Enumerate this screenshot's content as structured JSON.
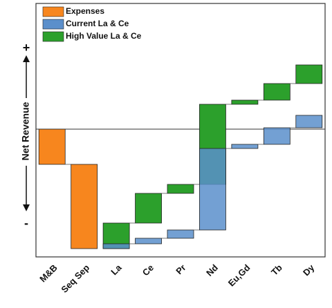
{
  "chart_data": {
    "type": "waterfall",
    "y_axis_label": "Net Revenue",
    "y_axis_top_label": "+",
    "y_axis_bottom_label": "-",
    "categories": [
      "M&B",
      "Seq Sep",
      "La",
      "Ce",
      "Pr",
      "Nd",
      "Eu,Gd",
      "Tb",
      "Dy"
    ],
    "series": [
      {
        "name": "Expenses",
        "color": "#f7861e",
        "values": [
          -51,
          -122,
          null,
          null,
          null,
          null,
          null,
          null,
          null
        ]
      },
      {
        "name": "Current La & Ce",
        "color": "#5b8fcb",
        "values": [
          null,
          null,
          7,
          8,
          12,
          118,
          6,
          24,
          18
        ]
      },
      {
        "name": "High Value La & Ce",
        "color": "#2ca02c",
        "values": [
          null,
          null,
          37,
          43,
          13,
          116,
          6,
          24,
          27
        ]
      }
    ],
    "ylim": [
      -185,
      182
    ],
    "legend": "upper left"
  }
}
